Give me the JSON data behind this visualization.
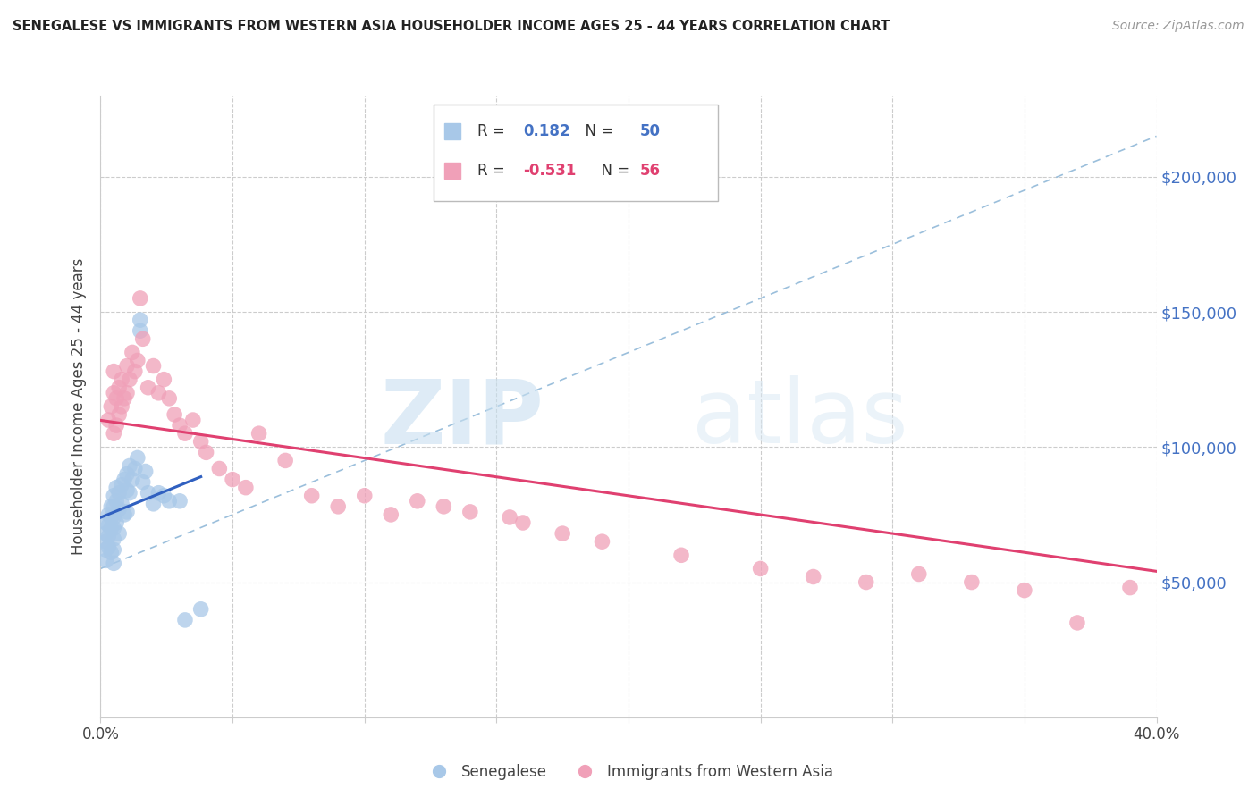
{
  "title": "SENEGALESE VS IMMIGRANTS FROM WESTERN ASIA HOUSEHOLDER INCOME AGES 25 - 44 YEARS CORRELATION CHART",
  "source": "Source: ZipAtlas.com",
  "ylabel": "Householder Income Ages 25 - 44 years",
  "xlim": [
    0.0,
    0.4
  ],
  "ylim": [
    0,
    230000
  ],
  "blue_R": 0.182,
  "blue_N": 50,
  "pink_R": -0.531,
  "pink_N": 56,
  "blue_color": "#a8c8e8",
  "pink_color": "#f0a0b8",
  "blue_line_color": "#3060c0",
  "pink_line_color": "#e04070",
  "dashed_line_color": "#90b8d8",
  "watermark_zip": "ZIP",
  "watermark_atlas": "atlas",
  "legend_label_blue": "Senegalese",
  "legend_label_pink": "Immigrants from Western Asia",
  "blue_x": [
    0.002,
    0.002,
    0.002,
    0.002,
    0.002,
    0.003,
    0.003,
    0.003,
    0.003,
    0.004,
    0.004,
    0.004,
    0.004,
    0.005,
    0.005,
    0.005,
    0.005,
    0.005,
    0.005,
    0.005,
    0.006,
    0.006,
    0.006,
    0.007,
    0.007,
    0.007,
    0.008,
    0.008,
    0.009,
    0.009,
    0.01,
    0.01,
    0.01,
    0.011,
    0.011,
    0.012,
    0.013,
    0.014,
    0.015,
    0.015,
    0.016,
    0.017,
    0.018,
    0.02,
    0.022,
    0.024,
    0.026,
    0.03,
    0.032,
    0.038
  ],
  "blue_y": [
    72000,
    68000,
    65000,
    62000,
    58000,
    75000,
    71000,
    67000,
    63000,
    78000,
    74000,
    70000,
    61000,
    82000,
    78000,
    74000,
    70000,
    66000,
    62000,
    57000,
    85000,
    80000,
    72000,
    83000,
    77000,
    68000,
    86000,
    79000,
    88000,
    75000,
    90000,
    84000,
    76000,
    93000,
    83000,
    88000,
    92000,
    96000,
    143000,
    147000,
    87000,
    91000,
    83000,
    79000,
    83000,
    82000,
    80000,
    80000,
    36000,
    40000
  ],
  "pink_x": [
    0.003,
    0.004,
    0.005,
    0.005,
    0.005,
    0.006,
    0.006,
    0.007,
    0.007,
    0.008,
    0.008,
    0.009,
    0.01,
    0.01,
    0.011,
    0.012,
    0.013,
    0.014,
    0.015,
    0.016,
    0.018,
    0.02,
    0.022,
    0.024,
    0.026,
    0.028,
    0.03,
    0.032,
    0.035,
    0.038,
    0.04,
    0.045,
    0.05,
    0.055,
    0.06,
    0.07,
    0.08,
    0.09,
    0.1,
    0.11,
    0.12,
    0.13,
    0.14,
    0.155,
    0.16,
    0.175,
    0.19,
    0.22,
    0.25,
    0.27,
    0.29,
    0.31,
    0.33,
    0.35,
    0.37,
    0.39
  ],
  "pink_y": [
    110000,
    115000,
    105000,
    120000,
    128000,
    118000,
    108000,
    122000,
    112000,
    125000,
    115000,
    118000,
    130000,
    120000,
    125000,
    135000,
    128000,
    132000,
    155000,
    140000,
    122000,
    130000,
    120000,
    125000,
    118000,
    112000,
    108000,
    105000,
    110000,
    102000,
    98000,
    92000,
    88000,
    85000,
    105000,
    95000,
    82000,
    78000,
    82000,
    75000,
    80000,
    78000,
    76000,
    74000,
    72000,
    68000,
    65000,
    60000,
    55000,
    52000,
    50000,
    53000,
    50000,
    47000,
    35000,
    48000
  ]
}
